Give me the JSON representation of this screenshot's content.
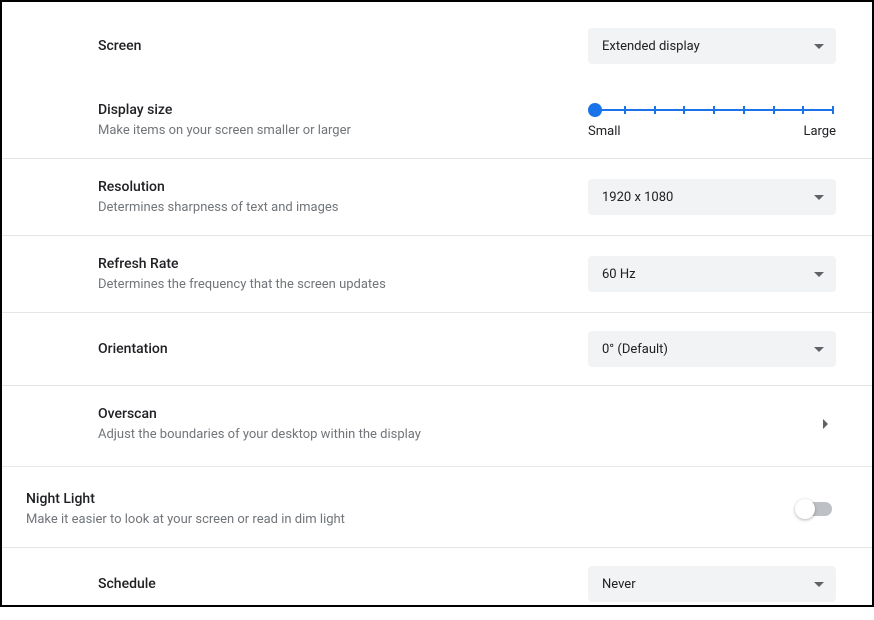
{
  "settings": {
    "screen": {
      "title": "Screen",
      "value": "Extended display"
    },
    "display_size": {
      "title": "Display size",
      "sub": "Make items on your screen smaller or larger",
      "slider": {
        "min_label": "Small",
        "max_label": "Large",
        "tick_count": 9,
        "value_index": 0,
        "color": "#1a73e8"
      }
    },
    "resolution": {
      "title": "Resolution",
      "sub": "Determines sharpness of text and images",
      "value": "1920 x 1080"
    },
    "refresh_rate": {
      "title": "Refresh Rate",
      "sub": "Determines the frequency that the screen updates",
      "value": "60 Hz"
    },
    "orientation": {
      "title": "Orientation",
      "value": "0° (Default)"
    },
    "overscan": {
      "title": "Overscan",
      "sub": "Adjust the boundaries of your desktop within the display"
    },
    "night_light": {
      "title": "Night Light",
      "sub": "Make it easier to look at your screen or read in dim light",
      "enabled": false
    },
    "schedule": {
      "title": "Schedule",
      "value": "Never"
    }
  },
  "style": {
    "dropdown_bg": "#f1f3f4",
    "text_primary": "#202124",
    "text_secondary": "#717579",
    "divider_color": "#e5e5e5"
  }
}
